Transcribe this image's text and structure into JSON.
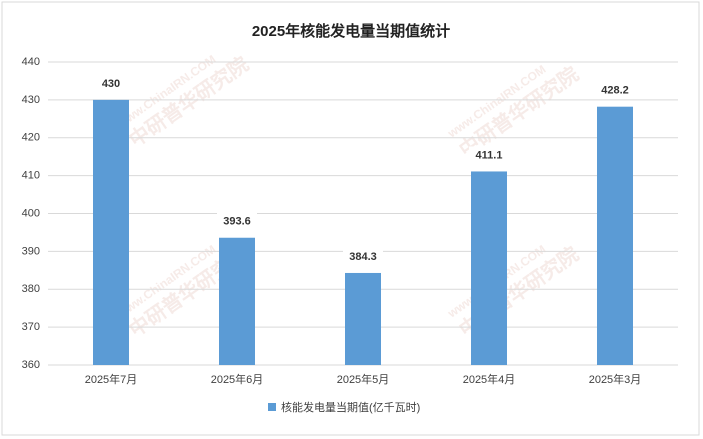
{
  "chart_data": {
    "type": "bar",
    "title": "2025年核能发电量当期值统计",
    "categories": [
      "2025年7月",
      "2025年6月",
      "2025年5月",
      "2025年4月",
      "2025年3月"
    ],
    "series": [
      {
        "name": "核能发电量当期值(亿千瓦时)",
        "color": "#5b9bd5",
        "values": [
          430,
          393.6,
          384.3,
          411.1,
          428.2
        ]
      }
    ],
    "ylim": [
      360,
      440
    ],
    "yticks": [
      360,
      370,
      380,
      390,
      400,
      410,
      420,
      430,
      440
    ],
    "grid": true,
    "legend": "bottom",
    "watermark": [
      "www.ChinaIRN.COM",
      "中研普华研究院"
    ]
  }
}
